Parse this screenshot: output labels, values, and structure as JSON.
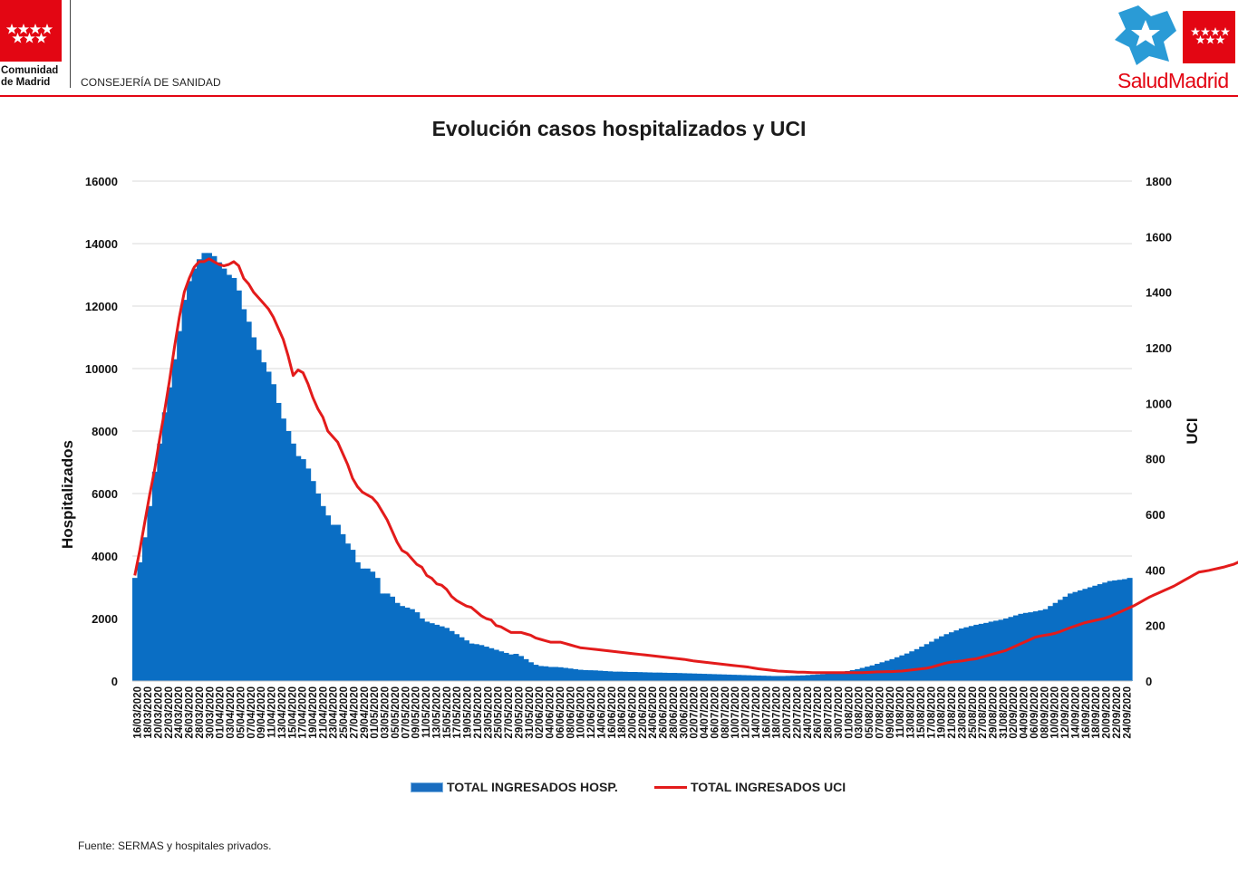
{
  "header": {
    "org_line1": "Comunidad",
    "org_line2": "de Madrid",
    "department": "CONSEJERÍA DE SANIDAD",
    "brand": "SaludMadrid"
  },
  "colors": {
    "brand_red": "#e30613",
    "bar_blue": "#0a6ec4",
    "line_red": "#e31b1b",
    "salud_blue": "#2a9bd6"
  },
  "chart_data": {
    "type": "bar+line",
    "title": "Evolución casos hospitalizados y UCI",
    "ylabel": "Hospitalizados",
    "y2label": "UCI",
    "ylim": [
      0,
      16000
    ],
    "y2lim": [
      0,
      1800
    ],
    "yticks": [
      "0",
      "2000",
      "4000",
      "6000",
      "8000",
      "10000",
      "12000",
      "14000",
      "16000"
    ],
    "y2ticks": [
      "0",
      "200",
      "400",
      "600",
      "800",
      "1000",
      "1200",
      "1400",
      "1600",
      "1800"
    ],
    "grid": true,
    "legend_position": "bottom",
    "start_date": "16/03/2020",
    "x_labels": [
      "16/03/2020",
      "18/03/2020",
      "20/03/2020",
      "22/03/2020",
      "24/03/2020",
      "26/03/2020",
      "28/03/2020",
      "30/03/2020",
      "01/04/2020",
      "03/04/2020",
      "05/04/2020",
      "07/04/2020",
      "09/04/2020",
      "11/04/2020",
      "13/04/2020",
      "15/04/2020",
      "17/04/2020",
      "19/04/2020",
      "21/04/2020",
      "23/04/2020",
      "25/04/2020",
      "27/04/2020",
      "29/04/2020",
      "01/05/2020",
      "03/05/2020",
      "05/05/2020",
      "07/05/2020",
      "09/05/2020",
      "11/05/2020",
      "13/05/2020",
      "15/05/2020",
      "17/05/2020",
      "19/05/2020",
      "21/05/2020",
      "23/05/2020",
      "25/05/2020",
      "27/05/2020",
      "29/05/2020",
      "31/05/2020",
      "02/06/2020",
      "04/06/2020",
      "06/06/2020",
      "08/06/2020",
      "10/06/2020",
      "12/06/2020",
      "14/06/2020",
      "16/06/2020",
      "18/06/2020",
      "20/06/2020",
      "22/06/2020",
      "24/06/2020",
      "26/06/2020",
      "28/06/2020",
      "30/06/2020",
      "02/07/2020",
      "04/07/2020",
      "06/07/2020",
      "08/07/2020",
      "10/07/2020",
      "12/07/2020",
      "14/07/2020",
      "16/07/2020",
      "18/07/2020",
      "20/07/2020",
      "22/07/2020",
      "24/07/2020",
      "26/07/2020",
      "28/07/2020",
      "30/07/2020",
      "01/08/2020",
      "03/08/2020",
      "05/08/2020",
      "07/08/2020",
      "09/08/2020",
      "11/08/2020",
      "13/08/2020",
      "15/08/2020",
      "17/08/2020",
      "19/08/2020",
      "21/08/2020",
      "23/08/2020",
      "25/08/2020",
      "27/08/2020",
      "29/08/2020",
      "31/08/2020",
      "02/09/2020",
      "04/09/2020",
      "06/09/2020",
      "08/09/2020",
      "10/09/2020",
      "12/09/2020",
      "14/09/2020",
      "16/09/2020",
      "18/09/2020",
      "20/09/2020",
      "22/09/2020",
      "24/09/2020"
    ],
    "series": [
      {
        "name": "TOTAL INGRESADOS HOSP.",
        "type": "bar",
        "axis": "left",
        "values": [
          3300,
          3800,
          4600,
          5600,
          6700,
          7600,
          8600,
          9400,
          10300,
          11200,
          12200,
          12800,
          13200,
          13500,
          13700,
          13700,
          13600,
          13400,
          13200,
          13000,
          12900,
          12500,
          11900,
          11500,
          11000,
          10600,
          10200,
          9900,
          9500,
          8900,
          8400,
          8000,
          7600,
          7200,
          7100,
          6800,
          6400,
          6000,
          5600,
          5300,
          5000,
          5000,
          4700,
          4400,
          4200,
          3800,
          3600,
          3600,
          3500,
          3300,
          2800,
          2800,
          2700,
          2500,
          2400,
          2350,
          2300,
          2200,
          2000,
          1900,
          1850,
          1800,
          1750,
          1700,
          1600,
          1500,
          1400,
          1300,
          1200,
          1180,
          1150,
          1100,
          1050,
          1000,
          950,
          900,
          850,
          870,
          800,
          700,
          600,
          520,
          480,
          470,
          450,
          450,
          440,
          420,
          400,
          380,
          360,
          350,
          345,
          340,
          330,
          320,
          310,
          300,
          300,
          295,
          290,
          290,
          285,
          280,
          275,
          270,
          270,
          265,
          260,
          260,
          255,
          250,
          245,
          240,
          235,
          230,
          225,
          220,
          215,
          210,
          205,
          200,
          195,
          190,
          185,
          180,
          175,
          170,
          165,
          160,
          160,
          160,
          165,
          170,
          175,
          180,
          190,
          200,
          210,
          220,
          235,
          250,
          270,
          290,
          320,
          350,
          380,
          420,
          460,
          500,
          550,
          600,
          650,
          700,
          760,
          820,
          880,
          950,
          1020,
          1100,
          1180,
          1260,
          1350,
          1430,
          1500,
          1560,
          1620,
          1680,
          1720,
          1760,
          1800,
          1830,
          1860,
          1900,
          1930,
          1960,
          2000,
          2050,
          2100,
          2150,
          2180,
          2200,
          2230,
          2260,
          2300,
          2400,
          2500,
          2600,
          2700,
          2800,
          2850,
          2900,
          2950,
          3000,
          3050,
          3100,
          3150,
          3200,
          3220,
          3240,
          3260,
          3300
        ]
      },
      {
        "name": "TOTAL INGRESADOS UCI",
        "type": "line",
        "axis": "right",
        "values": [
          380,
          470,
          570,
          670,
          760,
          870,
          970,
          1080,
          1200,
          1310,
          1400,
          1450,
          1490,
          1510,
          1510,
          1520,
          1510,
          1500,
          1495,
          1500,
          1510,
          1495,
          1450,
          1430,
          1400,
          1380,
          1360,
          1340,
          1310,
          1270,
          1230,
          1170,
          1100,
          1120,
          1110,
          1070,
          1020,
          980,
          950,
          900,
          880,
          860,
          820,
          780,
          730,
          700,
          680,
          670,
          660,
          640,
          610,
          580,
          540,
          500,
          470,
          460,
          440,
          420,
          410,
          380,
          370,
          350,
          345,
          330,
          305,
          290,
          280,
          270,
          265,
          250,
          235,
          225,
          220,
          200,
          195,
          185,
          175,
          175,
          175,
          170,
          165,
          155,
          150,
          145,
          140,
          140,
          140,
          135,
          130,
          125,
          120,
          118,
          116,
          114,
          112,
          110,
          108,
          106,
          104,
          102,
          100,
          98,
          96,
          94,
          92,
          90,
          88,
          86,
          84,
          82,
          80,
          78,
          75,
          72,
          70,
          68,
          66,
          64,
          62,
          60,
          58,
          56,
          54,
          52,
          50,
          47,
          44,
          42,
          40,
          38,
          36,
          35,
          34,
          33,
          32,
          32,
          31,
          30,
          30,
          30,
          30,
          30,
          30,
          30,
          30,
          30,
          30,
          30,
          31,
          32,
          33,
          33,
          34,
          34,
          35,
          36,
          38,
          40,
          42,
          44,
          46,
          50,
          55,
          60,
          65,
          68,
          70,
          72,
          75,
          78,
          80,
          85,
          90,
          95,
          100,
          105,
          110,
          118,
          126,
          134,
          142,
          150,
          158,
          162,
          165,
          168,
          172,
          178,
          185,
          192,
          198,
          204,
          210,
          214,
          218,
          222,
          226,
          232,
          240,
          248,
          256,
          264,
          272,
          282,
          292,
          302,
          310,
          318,
          326,
          334,
          342,
          352,
          362,
          372,
          382,
          392,
          395,
          398,
          402,
          406,
          410,
          415,
          420,
          428,
          436,
          444,
          452
        ]
      }
    ]
  },
  "legend": {
    "bar_label": "TOTAL INGRESADOS HOSP.",
    "line_label": "TOTAL INGRESADOS UCI"
  },
  "footer": {
    "source": "Fuente: SERMAS y hospitales privados."
  }
}
